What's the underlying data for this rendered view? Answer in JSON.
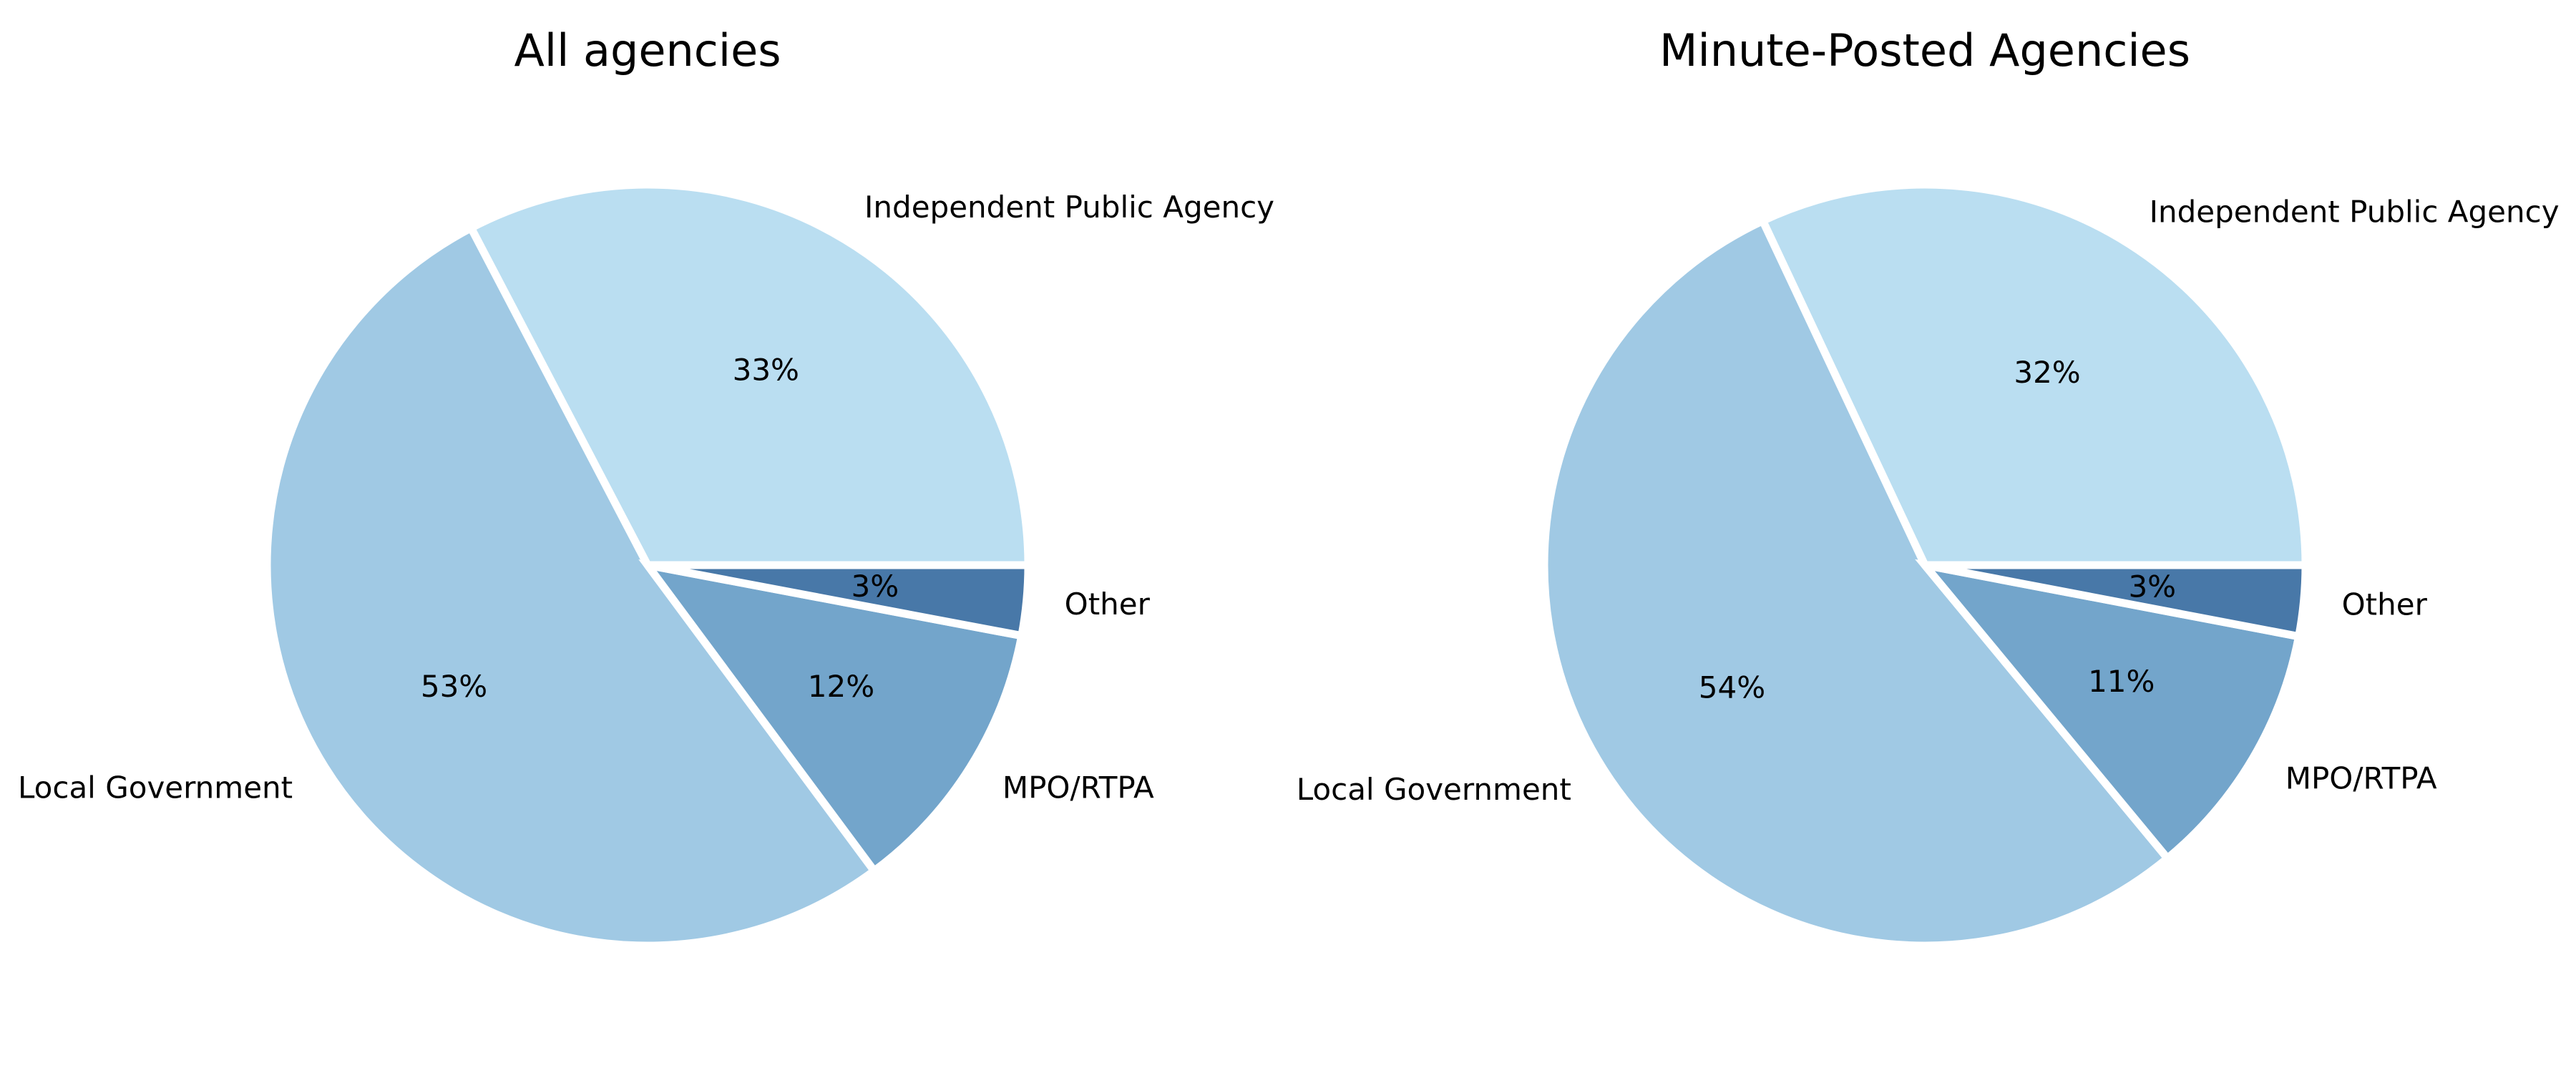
{
  "chart_data": [
    {
      "type": "pie",
      "title": "All agencies",
      "categories": [
        "Independent Public Agency",
        "Local Government",
        "MPO/RTPA",
        "Other"
      ],
      "values": [
        33,
        53,
        12,
        3
      ],
      "percent_labels": [
        "33%",
        "53%",
        "12%",
        "3%"
      ],
      "colors": [
        "#badef1",
        "#a0c9e4",
        "#73a5cb",
        "#4878a8"
      ],
      "start_angle_deg": 0,
      "direction": "counterclockwise"
    },
    {
      "type": "pie",
      "title": "Minute-Posted Agencies",
      "categories": [
        "Independent Public Agency",
        "Local Government",
        "MPO/RTPA",
        "Other"
      ],
      "values": [
        32,
        54,
        11,
        3
      ],
      "percent_labels": [
        "32%",
        "54%",
        "11%",
        "3%"
      ],
      "colors": [
        "#badef1",
        "#a0c9e4",
        "#73a5cb",
        "#4878a8"
      ],
      "start_angle_deg": 0,
      "direction": "counterclockwise"
    }
  ]
}
